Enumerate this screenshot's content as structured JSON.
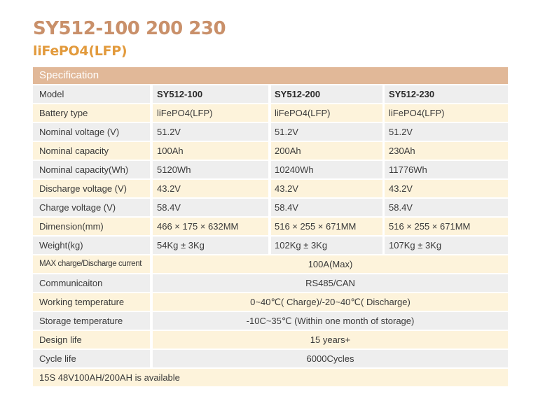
{
  "title": "SY512-100 200 230",
  "subtitle": "liFePO4(LFP)",
  "spec_header": "Specification",
  "rows": [
    {
      "label": "Model",
      "values": [
        "SY512-100",
        "SY512-200",
        "SY512-230"
      ]
    },
    {
      "label": "Battery type",
      "values": [
        "liFePO4(LFP)",
        "liFePO4(LFP)",
        "liFePO4(LFP)"
      ]
    },
    {
      "label": "Nominal voltage (V)",
      "values": [
        "51.2V",
        "51.2V",
        "51.2V"
      ]
    },
    {
      "label": "Nominal capacity",
      "values": [
        "100Ah",
        "200Ah",
        "230Ah"
      ]
    },
    {
      "label": "Nominal capacity(Wh)",
      "values": [
        "5120Wh",
        "10240Wh",
        "11776Wh"
      ]
    },
    {
      "label": "Discharge voltage (V)",
      "values": [
        "43.2V",
        "43.2V",
        "43.2V"
      ]
    },
    {
      "label": "Charge voltage (V)",
      "values": [
        "58.4V",
        "58.4V",
        "58.4V"
      ]
    },
    {
      "label": "Dimension(mm)",
      "values": [
        "466 × 175 × 632MM",
        "516 × 255 × 671MM",
        "516 × 255 × 671MM"
      ]
    },
    {
      "label": "Weight(kg)",
      "values": [
        "54Kg ± 3Kg",
        "102Kg ± 3Kg",
        "107Kg ± 3Kg"
      ]
    },
    {
      "label": "MAX charge/Discharge current",
      "value": "100A(Max)"
    },
    {
      "label": "Communicaiton",
      "value": "RS485/CAN"
    },
    {
      "label": "Working temperature",
      "value": "0~40℃( Charge)/-20~40℃( Discharge)"
    },
    {
      "label": "Storage temperature",
      "value": "-10C~35℃ (Within one month of storage)"
    },
    {
      "label": "Design life",
      "value": "15 years+"
    },
    {
      "label": "Cycle life",
      "value": "6000Cycles"
    }
  ],
  "footnote": "15S  48V100AH/200AH  is  available"
}
